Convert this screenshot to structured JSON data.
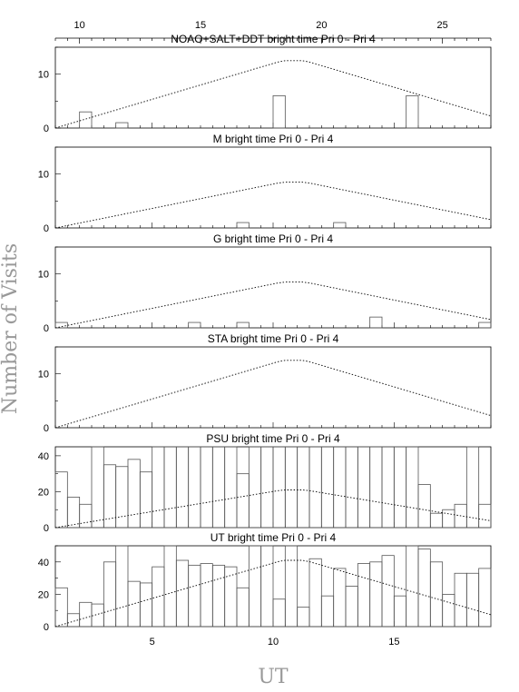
{
  "figure": {
    "xlabel": "UT",
    "ylabel": "Number of Visits",
    "top_axis_ticks": [
      "10",
      "15",
      "20",
      "25"
    ],
    "bottom_axis_ticks": [
      "5",
      "10",
      "15"
    ]
  },
  "chart_data": [
    {
      "type": "bar",
      "title": "NOAO+SALT+DDT    bright time Pri 0 - Pri 4",
      "ylim": [
        0,
        15
      ],
      "yticks": [
        "0",
        "10"
      ],
      "x": [
        1.5,
        2.0,
        3.5,
        10.0,
        15.5
      ],
      "values": [
        0,
        3,
        1,
        6,
        6
      ],
      "envelope_peak": 12.5
    },
    {
      "type": "bar",
      "title": "M    bright time Pri 0 - Pri 4",
      "ylim": [
        0,
        15
      ],
      "yticks": [
        "0",
        "10"
      ],
      "x": [
        8.5,
        12.5
      ],
      "values": [
        1,
        1
      ],
      "envelope_peak": 8.5
    },
    {
      "type": "bar",
      "title": "G    bright time Pri 0 - Pri 4",
      "ylim": [
        0,
        15
      ],
      "yticks": [
        "0",
        "10"
      ],
      "x": [
        1.0,
        6.5,
        8.5,
        14.0,
        18.5
      ],
      "values": [
        1,
        1,
        1,
        2,
        1
      ],
      "envelope_peak": 8.5
    },
    {
      "type": "bar",
      "title": "STA    bright time Pri 0 - Pri 4",
      "ylim": [
        0,
        15
      ],
      "yticks": [
        "0",
        "10"
      ],
      "x": [],
      "values": [],
      "envelope_peak": 12.5
    },
    {
      "type": "bar",
      "title": "PSU    bright time Pri 0 - Pri 4",
      "ylim": [
        0,
        45
      ],
      "yticks": [
        "0",
        "20",
        "40"
      ],
      "x": [
        1,
        1.5,
        2,
        2.5,
        3,
        3.5,
        4,
        4.5,
        5,
        5.5,
        6,
        6.5,
        7,
        7.5,
        8,
        8.5,
        9,
        9.5,
        10,
        10.5,
        11,
        11.5,
        12,
        12.5,
        13,
        13.5,
        14,
        14.5,
        15,
        15.5,
        16,
        16.5,
        17,
        17.5,
        18,
        18.5
      ],
      "values": [
        31,
        17,
        13,
        45,
        35,
        34,
        38,
        31,
        45,
        45,
        45,
        45,
        45,
        45,
        45,
        30,
        45,
        45,
        45,
        45,
        45,
        45,
        45,
        45,
        45,
        45,
        45,
        45,
        45,
        45,
        24,
        8,
        10,
        13,
        45,
        13
      ],
      "envelope_peak": 21
    },
    {
      "type": "bar",
      "title": "UT    bright time Pri 0 - Pri 4",
      "ylim": [
        0,
        50
      ],
      "yticks": [
        "0",
        "20",
        "40"
      ],
      "x": [
        1,
        1.5,
        2,
        2.5,
        3,
        3.5,
        4,
        4.5,
        5,
        5.5,
        6,
        6.5,
        7,
        7.5,
        8,
        8.5,
        9,
        9.5,
        10,
        10.5,
        11,
        11.5,
        12,
        12.5,
        13,
        13.5,
        14,
        14.5,
        15,
        15.5,
        16,
        16.5,
        17,
        17.5,
        18,
        18.5
      ],
      "values": [
        24,
        8,
        15,
        14,
        40,
        50,
        28,
        27,
        37,
        50,
        41,
        38,
        39,
        38,
        37,
        24,
        50,
        50,
        17,
        50,
        12,
        42,
        19,
        36,
        25,
        39,
        40,
        44,
        19,
        50,
        48,
        40,
        20,
        33,
        33,
        36
      ],
      "envelope_peak": 41
    }
  ]
}
